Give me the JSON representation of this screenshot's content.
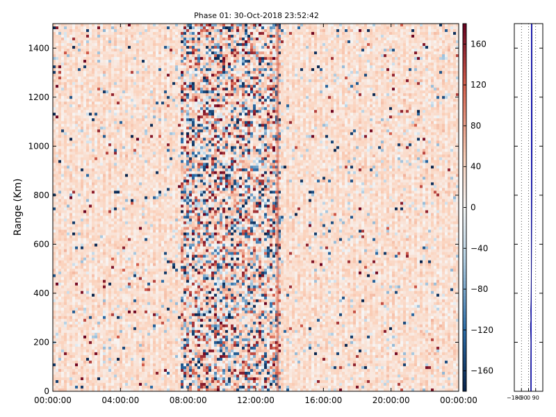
{
  "chart_data": [
    {
      "type": "heatmap",
      "title": "Phase 01: 30-Oct-2018 23:52:42",
      "xlabel": "",
      "ylabel": "Range (Km)",
      "x_tick_labels": [
        "00:00:00",
        "04:00:00",
        "08:00:00",
        "12:00:00",
        "16:00:00",
        "20:00:00",
        "00:00:00"
      ],
      "x_range_hours": [
        0,
        24
      ],
      "y_ticks": [
        "0",
        "200",
        "400",
        "600",
        "800",
        "1000",
        "1200",
        "1400"
      ],
      "ylim": [
        0,
        1500
      ],
      "colormap": "RdBu_r",
      "colorbar_range": [
        -180,
        180
      ],
      "colorbar_ticks": [
        "−160",
        "−120",
        "−80",
        "−40",
        "0",
        "40",
        "80",
        "120",
        "160"
      ],
      "colors": {
        "neg_extreme": "#08224a",
        "neg_mid": "#2c6da8",
        "neg_light": "#b7d3e6",
        "neutral": "#f7f7f7",
        "pos_light": "#fbd0b9",
        "pos_mid": "#d6604d",
        "pos_extreme": "#67001f"
      },
      "dominant_phase_deg": 30,
      "noisy_band_hours": [
        7.6,
        13.4
      ],
      "vertical_marker_hour": 13.3
    },
    {
      "type": "line",
      "title": "",
      "xlabel": "",
      "ylabel": "",
      "x_tick_labels": [
        "−180",
        "−90",
        "0",
        "90"
      ],
      "xlim": [
        -180,
        180
      ],
      "ylim": [
        0,
        1500
      ],
      "grid": "vertical-dotted",
      "vertical_line_x": 35,
      "profile": [
        [
          28,
          0
        ],
        [
          28,
          100
        ],
        [
          30,
          200
        ],
        [
          25,
          270
        ],
        [
          30,
          290
        ],
        [
          28,
          330
        ],
        [
          32,
          370
        ],
        [
          34,
          430
        ],
        [
          36,
          500
        ],
        [
          38,
          600
        ],
        [
          40,
          700
        ],
        [
          42,
          800
        ],
        [
          43,
          900
        ],
        [
          44,
          1000
        ],
        [
          44,
          1100
        ],
        [
          44,
          1200
        ],
        [
          43,
          1300
        ],
        [
          43,
          1400
        ],
        [
          43,
          1500
        ]
      ]
    }
  ]
}
